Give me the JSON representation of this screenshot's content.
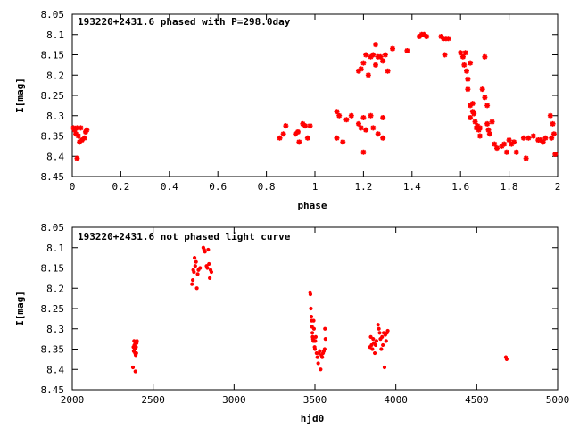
{
  "chart_data": [
    {
      "type": "scatter",
      "title": "193220+2431.6 phased with P=298.0day",
      "xlabel": "phase",
      "ylabel": "I[mag]",
      "xlim": [
        0,
        2
      ],
      "ylim": [
        8.05,
        8.45
      ],
      "y_inverted": true,
      "xticks": [
        0,
        0.2,
        0.4,
        0.6,
        0.8,
        1,
        1.2,
        1.4,
        1.6,
        1.8,
        2
      ],
      "xtick_labels": [
        "0",
        "0.2",
        "0.4",
        "0.6",
        "0.8",
        "1",
        "1.2",
        "1.4",
        "1.6",
        "1.8",
        "2"
      ],
      "yticks": [
        8.05,
        8.1,
        8.15,
        8.2,
        8.25,
        8.3,
        8.35,
        8.4,
        8.45
      ],
      "ytick_labels": [
        "8.05",
        "8.1",
        "8.15",
        "8.2",
        "8.25",
        "8.3",
        "8.35",
        "8.4",
        "8.45"
      ],
      "grid": false,
      "marker_color": "#ff0000",
      "marker": "star",
      "points": [
        [
          0.005,
          8.33
        ],
        [
          0.01,
          8.335
        ],
        [
          0.015,
          8.345
        ],
        [
          0.02,
          8.33
        ],
        [
          0.025,
          8.35
        ],
        [
          0.03,
          8.365
        ],
        [
          0.035,
          8.33
        ],
        [
          0.02,
          8.405
        ],
        [
          0.04,
          8.36
        ],
        [
          0.05,
          8.355
        ],
        [
          0.055,
          8.34
        ],
        [
          0.06,
          8.335
        ],
        [
          0.855,
          8.355
        ],
        [
          0.87,
          8.345
        ],
        [
          0.88,
          8.325
        ],
        [
          0.92,
          8.345
        ],
        [
          0.93,
          8.34
        ],
        [
          0.935,
          8.365
        ],
        [
          0.95,
          8.32
        ],
        [
          0.96,
          8.325
        ],
        [
          0.97,
          8.355
        ],
        [
          0.98,
          8.325
        ],
        [
          1.09,
          8.29
        ],
        [
          1.09,
          8.355
        ],
        [
          1.1,
          8.3
        ],
        [
          1.115,
          8.365
        ],
        [
          1.13,
          8.31
        ],
        [
          1.15,
          8.3
        ],
        [
          1.18,
          8.32
        ],
        [
          1.19,
          8.33
        ],
        [
          1.2,
          8.305
        ],
        [
          1.2,
          8.39
        ],
        [
          1.21,
          8.335
        ],
        [
          1.23,
          8.3
        ],
        [
          1.24,
          8.33
        ],
        [
          1.26,
          8.345
        ],
        [
          1.28,
          8.355
        ],
        [
          1.28,
          8.305
        ],
        [
          1.18,
          8.19
        ],
        [
          1.19,
          8.185
        ],
        [
          1.2,
          8.17
        ],
        [
          1.21,
          8.15
        ],
        [
          1.22,
          8.2
        ],
        [
          1.23,
          8.155
        ],
        [
          1.24,
          8.15
        ],
        [
          1.25,
          8.125
        ],
        [
          1.25,
          8.175
        ],
        [
          1.26,
          8.155
        ],
        [
          1.27,
          8.155
        ],
        [
          1.28,
          8.165
        ],
        [
          1.29,
          8.15
        ],
        [
          1.3,
          8.19
        ],
        [
          1.32,
          8.135
        ],
        [
          1.38,
          8.14
        ],
        [
          1.43,
          8.105
        ],
        [
          1.44,
          8.1
        ],
        [
          1.45,
          8.1
        ],
        [
          1.46,
          8.105
        ],
        [
          1.52,
          8.105
        ],
        [
          1.53,
          8.11
        ],
        [
          1.535,
          8.15
        ],
        [
          1.54,
          8.11
        ],
        [
          1.55,
          8.11
        ],
        [
          1.6,
          8.145
        ],
        [
          1.61,
          8.155
        ],
        [
          1.615,
          8.175
        ],
        [
          1.62,
          8.145
        ],
        [
          1.625,
          8.19
        ],
        [
          1.63,
          8.21
        ],
        [
          1.63,
          8.235
        ],
        [
          1.64,
          8.17
        ],
        [
          1.64,
          8.275
        ],
        [
          1.64,
          8.305
        ],
        [
          1.65,
          8.27
        ],
        [
          1.65,
          8.29
        ],
        [
          1.655,
          8.295
        ],
        [
          1.66,
          8.315
        ],
        [
          1.665,
          8.33
        ],
        [
          1.67,
          8.325
        ],
        [
          1.675,
          8.335
        ],
        [
          1.68,
          8.33
        ],
        [
          1.68,
          8.35
        ],
        [
          1.69,
          8.235
        ],
        [
          1.7,
          8.155
        ],
        [
          1.7,
          8.255
        ],
        [
          1.71,
          8.275
        ],
        [
          1.71,
          8.32
        ],
        [
          1.715,
          8.335
        ],
        [
          1.72,
          8.345
        ],
        [
          1.73,
          8.315
        ],
        [
          1.74,
          8.37
        ],
        [
          1.75,
          8.38
        ],
        [
          1.77,
          8.375
        ],
        [
          1.78,
          8.37
        ],
        [
          1.79,
          8.39
        ],
        [
          1.8,
          8.36
        ],
        [
          1.81,
          8.37
        ],
        [
          1.82,
          8.365
        ],
        [
          1.83,
          8.39
        ],
        [
          1.86,
          8.355
        ],
        [
          1.87,
          8.405
        ],
        [
          1.88,
          8.355
        ],
        [
          1.9,
          8.35
        ],
        [
          1.92,
          8.36
        ],
        [
          1.93,
          8.36
        ],
        [
          1.94,
          8.365
        ],
        [
          1.95,
          8.355
        ],
        [
          1.97,
          8.3
        ],
        [
          1.975,
          8.355
        ],
        [
          1.98,
          8.32
        ],
        [
          1.985,
          8.345
        ],
        [
          1.99,
          8.395
        ]
      ]
    },
    {
      "type": "scatter",
      "title": "193220+2431.6 not phased light curve",
      "xlabel": "hjd0",
      "ylabel": "I[mag]",
      "xlim": [
        2000,
        5000
      ],
      "ylim": [
        8.05,
        8.45
      ],
      "y_inverted": true,
      "xticks": [
        2000,
        2500,
        3000,
        3500,
        4000,
        4500,
        5000
      ],
      "xtick_labels": [
        "2000",
        "2500",
        "3000",
        "3500",
        "4000",
        "4500",
        "5000"
      ],
      "yticks": [
        8.05,
        8.1,
        8.15,
        8.2,
        8.25,
        8.3,
        8.35,
        8.4,
        8.45
      ],
      "ytick_labels": [
        "8.05",
        "8.1",
        "8.15",
        "8.2",
        "8.25",
        "8.3",
        "8.35",
        "8.4",
        "8.45"
      ],
      "grid": false,
      "marker_color": "#ff0000",
      "marker": "dot",
      "points": [
        [
          2375,
          8.395
        ],
        [
          2378,
          8.345
        ],
        [
          2380,
          8.355
        ],
        [
          2382,
          8.33
        ],
        [
          2384,
          8.34
        ],
        [
          2386,
          8.35
        ],
        [
          2388,
          8.36
        ],
        [
          2390,
          8.335
        ],
        [
          2392,
          8.365
        ],
        [
          2394,
          8.345
        ],
        [
          2396,
          8.36
        ],
        [
          2398,
          8.335
        ],
        [
          2400,
          8.33
        ],
        [
          2390,
          8.405
        ],
        [
          2740,
          8.19
        ],
        [
          2745,
          8.18
        ],
        [
          2748,
          8.155
        ],
        [
          2752,
          8.16
        ],
        [
          2756,
          8.125
        ],
        [
          2760,
          8.145
        ],
        [
          2765,
          8.135
        ],
        [
          2770,
          8.2
        ],
        [
          2775,
          8.165
        ],
        [
          2780,
          8.155
        ],
        [
          2790,
          8.15
        ],
        [
          2810,
          8.1
        ],
        [
          2815,
          8.105
        ],
        [
          2820,
          8.11
        ],
        [
          2830,
          8.145
        ],
        [
          2835,
          8.15
        ],
        [
          2840,
          8.105
        ],
        [
          2845,
          8.14
        ],
        [
          2850,
          8.175
        ],
        [
          2855,
          8.155
        ],
        [
          2860,
          8.16
        ],
        [
          3470,
          8.21
        ],
        [
          3472,
          8.215
        ],
        [
          3475,
          8.25
        ],
        [
          3478,
          8.27
        ],
        [
          3480,
          8.28
        ],
        [
          3482,
          8.295
        ],
        [
          3484,
          8.31
        ],
        [
          3486,
          8.32
        ],
        [
          3488,
          8.325
        ],
        [
          3490,
          8.33
        ],
        [
          3492,
          8.28
        ],
        [
          3494,
          8.3
        ],
        [
          3496,
          8.33
        ],
        [
          3498,
          8.345
        ],
        [
          3500,
          8.35
        ],
        [
          3502,
          8.33
        ],
        [
          3505,
          8.32
        ],
        [
          3510,
          8.36
        ],
        [
          3515,
          8.37
        ],
        [
          3520,
          8.385
        ],
        [
          3525,
          8.36
        ],
        [
          3530,
          8.355
        ],
        [
          3535,
          8.4
        ],
        [
          3540,
          8.365
        ],
        [
          3545,
          8.37
        ],
        [
          3550,
          8.36
        ],
        [
          3555,
          8.355
        ],
        [
          3560,
          8.35
        ],
        [
          3562,
          8.3
        ],
        [
          3565,
          8.325
        ],
        [
          3840,
          8.345
        ],
        [
          3845,
          8.32
        ],
        [
          3850,
          8.34
        ],
        [
          3855,
          8.35
        ],
        [
          3860,
          8.325
        ],
        [
          3865,
          8.335
        ],
        [
          3870,
          8.36
        ],
        [
          3875,
          8.34
        ],
        [
          3880,
          8.33
        ],
        [
          3890,
          8.29
        ],
        [
          3895,
          8.3
        ],
        [
          3900,
          8.31
        ],
        [
          3905,
          8.325
        ],
        [
          3910,
          8.35
        ],
        [
          3915,
          8.32
        ],
        [
          3920,
          8.34
        ],
        [
          3925,
          8.31
        ],
        [
          3930,
          8.395
        ],
        [
          3935,
          8.315
        ],
        [
          3940,
          8.33
        ],
        [
          3945,
          8.31
        ],
        [
          3950,
          8.305
        ],
        [
          4680,
          8.37
        ],
        [
          4685,
          8.375
        ]
      ]
    }
  ]
}
